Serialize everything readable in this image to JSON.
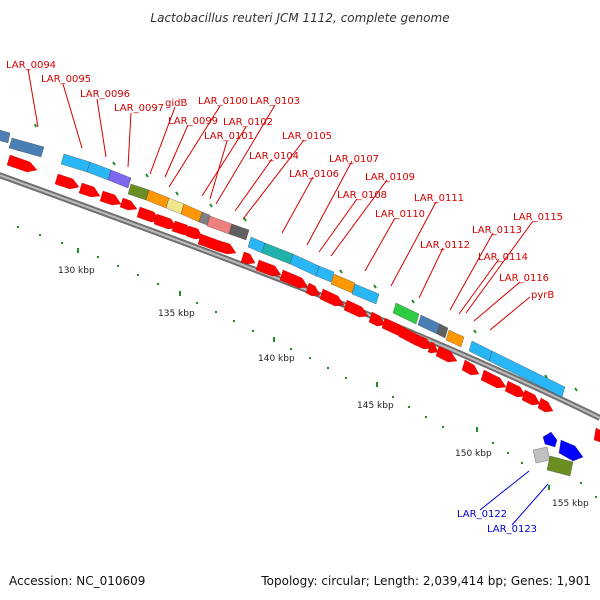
{
  "title": "Lactobacillus reuteri JCM 1112, complete genome",
  "footer": {
    "accession": "Accession: NC_010609",
    "summary": "Topology: circular; Length: 2,039,414 bp; Genes: 1,901"
  },
  "colors": {
    "backbone": "#808080",
    "cds": "#ff0000",
    "tick": "#228b22",
    "label_red": "#d40000",
    "label_blue": "#0000cc"
  },
  "ticks": [
    {
      "kbp": 130,
      "label": "130 kbp"
    },
    {
      "kbp": 135,
      "label": "135 kbp"
    },
    {
      "kbp": 140,
      "label": "140 kbp"
    },
    {
      "kbp": 145,
      "label": "145 kbp"
    },
    {
      "kbp": 150,
      "label": "150 kbp"
    },
    {
      "kbp": 155,
      "label": "155 kbp"
    }
  ],
  "gene_labels": [
    {
      "name": "LAR_0094",
      "color": "red"
    },
    {
      "name": "LAR_0095",
      "color": "red"
    },
    {
      "name": "LAR_0096",
      "color": "red"
    },
    {
      "name": "LAR_0097",
      "color": "red"
    },
    {
      "name": "gidB",
      "color": "red"
    },
    {
      "name": "LAR_0100",
      "color": "red"
    },
    {
      "name": "LAR_0099",
      "color": "red"
    },
    {
      "name": "LAR_0103",
      "color": "red"
    },
    {
      "name": "LAR_0102",
      "color": "red"
    },
    {
      "name": "LAR_0101",
      "color": "red"
    },
    {
      "name": "LAR_0105",
      "color": "red"
    },
    {
      "name": "LAR_0104",
      "color": "red"
    },
    {
      "name": "LAR_0107",
      "color": "red"
    },
    {
      "name": "LAR_0106",
      "color": "red"
    },
    {
      "name": "LAR_0109",
      "color": "red"
    },
    {
      "name": "LAR_0108",
      "color": "red"
    },
    {
      "name": "LAR_0111",
      "color": "red"
    },
    {
      "name": "LAR_0110",
      "color": "red"
    },
    {
      "name": "LAR_0115",
      "color": "red"
    },
    {
      "name": "LAR_0113",
      "color": "red"
    },
    {
      "name": "LAR_0112",
      "color": "red"
    },
    {
      "name": "LAR_0114",
      "color": "red"
    },
    {
      "name": "LAR_0116",
      "color": "red"
    },
    {
      "name": "pyrB",
      "color": "red"
    },
    {
      "name": "LAR_0122",
      "color": "blue"
    },
    {
      "name": "LAR_0123",
      "color": "blue"
    }
  ]
}
